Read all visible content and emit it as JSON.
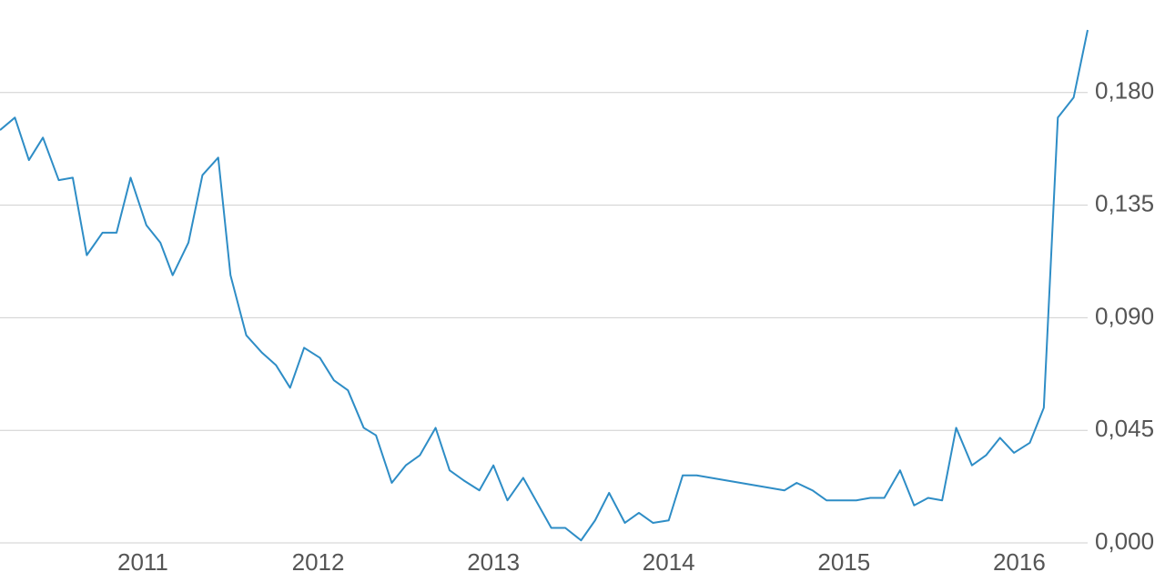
{
  "chart_data": {
    "type": "line",
    "x": [
      2010.185,
      2010.27,
      2010.35,
      2010.43,
      2010.52,
      2010.6,
      2010.68,
      2010.77,
      2010.85,
      2010.93,
      2011.02,
      2011.1,
      2011.17,
      2011.26,
      2011.34,
      2011.43,
      2011.5,
      2011.59,
      2011.68,
      2011.76,
      2011.84,
      2011.92,
      2012.01,
      2012.09,
      2012.17,
      2012.26,
      2012.33,
      2012.42,
      2012.5,
      2012.58,
      2012.67,
      2012.75,
      2012.83,
      2012.92,
      2013.0,
      2013.08,
      2013.17,
      2013.25,
      2013.33,
      2013.41,
      2013.5,
      2013.58,
      2013.66,
      2013.75,
      2013.83,
      2013.91,
      2014.0,
      2014.08,
      2014.16,
      2014.66,
      2014.73,
      2014.82,
      2014.9,
      2015.07,
      2015.15,
      2015.23,
      2015.32,
      2015.4,
      2015.48,
      2015.56,
      2015.64,
      2015.73,
      2015.81,
      2015.89,
      2015.97,
      2016.06,
      2016.14,
      2016.22,
      2016.31,
      2016.39
    ],
    "series": [
      {
        "color": "#2e8dc6",
        "values": [
          0.165,
          0.17,
          0.153,
          0.162,
          0.145,
          0.146,
          0.115,
          0.124,
          0.124,
          0.146,
          0.127,
          0.12,
          0.107,
          0.12,
          0.147,
          0.154,
          0.107,
          0.083,
          0.076,
          0.071,
          0.062,
          0.078,
          0.074,
          0.065,
          0.061,
          0.046,
          0.043,
          0.024,
          0.031,
          0.035,
          0.046,
          0.029,
          0.025,
          0.021,
          0.031,
          0.017,
          0.026,
          0.016,
          0.006,
          0.006,
          0.001,
          0.009,
          0.02,
          0.008,
          0.012,
          0.008,
          0.009,
          0.027,
          0.027,
          0.021,
          0.024,
          0.021,
          0.017,
          0.017,
          0.018,
          0.018,
          0.029,
          0.015,
          0.018,
          0.017,
          0.046,
          0.031,
          0.035,
          0.042,
          0.036,
          0.04,
          0.054,
          0.17,
          0.178,
          0.205
        ]
      }
    ],
    "xlim": [
      2010.185,
      2016.39
    ],
    "xticks": [
      2011,
      2012,
      2013,
      2014,
      2015,
      2016
    ],
    "ylim": [
      0,
      0.217
    ],
    "yticks": [
      {
        "value": 0,
        "label": "0,000"
      },
      {
        "value": 0.045,
        "label": "0,045"
      },
      {
        "value": 0.09,
        "label": "0,090"
      },
      {
        "value": 0.135,
        "label": "0,135"
      },
      {
        "value": 0.18,
        "label": "0,180"
      }
    ],
    "grid": true
  }
}
